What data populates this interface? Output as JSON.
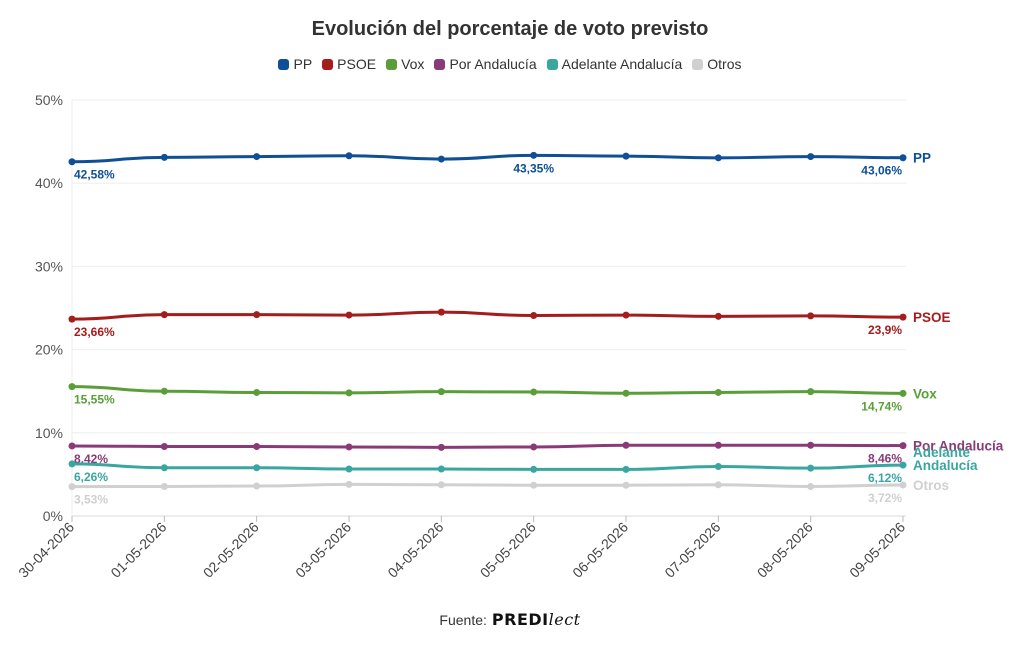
{
  "chart_data": {
    "type": "line",
    "title": "Evolución del porcentaje de voto previsto",
    "x": [
      "30-04-2026",
      "01-05-2026",
      "02-05-2026",
      "03-05-2026",
      "04-05-2026",
      "05-05-2026",
      "06-05-2026",
      "07-05-2026",
      "08-05-2026",
      "09-05-2026"
    ],
    "ylim": [
      0,
      50
    ],
    "yticks": [
      "0%",
      "10%",
      "20%",
      "30%",
      "40%",
      "50%"
    ],
    "grid": true,
    "legend_position": "top-center",
    "series": [
      {
        "name": "PP",
        "color": "#0f4f95",
        "values": [
          42.58,
          43.1,
          43.2,
          43.3,
          42.9,
          43.35,
          43.25,
          43.05,
          43.2,
          43.06
        ],
        "point_labels": [
          {
            "i": 0,
            "text": "42,58%"
          },
          {
            "i": 5,
            "text": "43,35%"
          },
          {
            "i": 9,
            "text": "43,06%"
          }
        ],
        "end_label": "PP"
      },
      {
        "name": "PSOE",
        "color": "#a51c1c",
        "values": [
          23.66,
          24.2,
          24.2,
          24.15,
          24.5,
          24.1,
          24.15,
          24.0,
          24.05,
          23.9
        ],
        "point_labels": [
          {
            "i": 0,
            "text": "23,66%"
          },
          {
            "i": 9,
            "text": "23,9%"
          }
        ],
        "end_label": "PSOE"
      },
      {
        "name": "Vox",
        "color": "#5a9e3a",
        "values": [
          15.55,
          15.0,
          14.85,
          14.8,
          14.95,
          14.9,
          14.75,
          14.85,
          14.95,
          14.74
        ],
        "point_labels": [
          {
            "i": 0,
            "text": "15,55%"
          },
          {
            "i": 9,
            "text": "14,74%"
          }
        ],
        "end_label": "Vox"
      },
      {
        "name": "Por Andalucía",
        "color": "#8b3a78",
        "values": [
          8.42,
          8.35,
          8.35,
          8.3,
          8.25,
          8.3,
          8.5,
          8.5,
          8.5,
          8.46
        ],
        "point_labels": [
          {
            "i": 0,
            "text": "8,42%"
          },
          {
            "i": 9,
            "text": "8,46%"
          }
        ],
        "end_label": "Por Andalucía"
      },
      {
        "name": "Adelante Andalucía",
        "color": "#3aa6a0",
        "values": [
          6.26,
          5.8,
          5.8,
          5.65,
          5.65,
          5.6,
          5.6,
          5.95,
          5.75,
          6.12
        ],
        "point_labels": [
          {
            "i": 0,
            "text": "6,26%"
          },
          {
            "i": 9,
            "text": "6,12%"
          }
        ],
        "end_label": "Adelante\nAndalucía"
      },
      {
        "name": "Otros",
        "color": "#d0d0d0",
        "values": [
          3.53,
          3.55,
          3.6,
          3.8,
          3.75,
          3.7,
          3.7,
          3.75,
          3.55,
          3.72
        ],
        "point_labels": [
          {
            "i": 0,
            "text": "3,53%"
          },
          {
            "i": 9,
            "text": "3,72%"
          }
        ],
        "end_label": "Otros"
      }
    ]
  },
  "footer": {
    "source_label": "Fuente:",
    "logo_bold": "PREDI",
    "logo_script": "lect"
  }
}
